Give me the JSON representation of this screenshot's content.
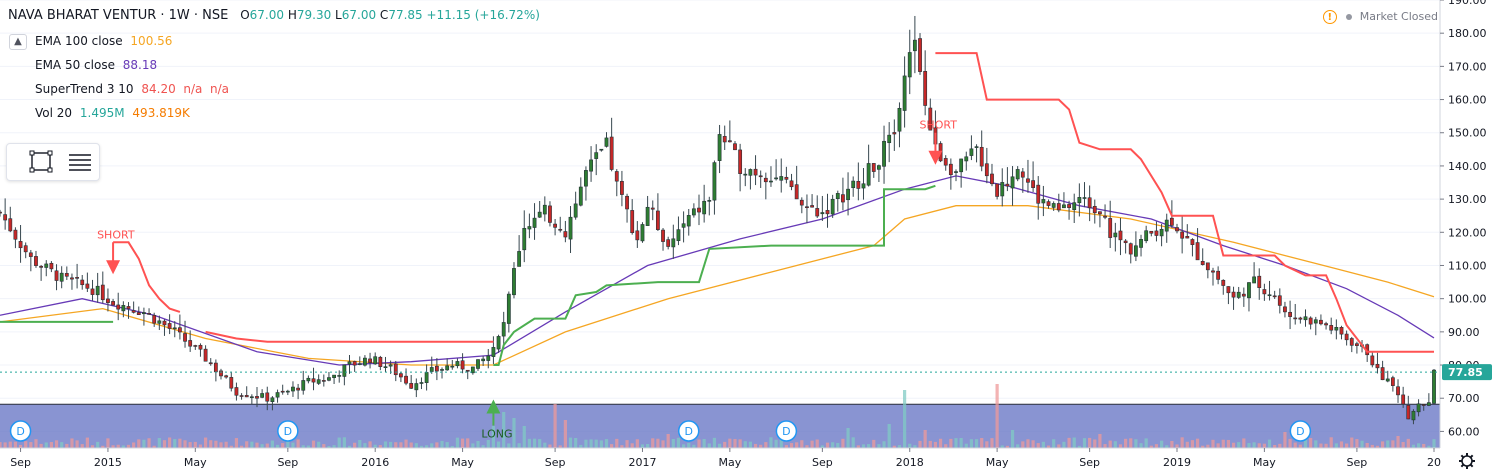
{
  "header": {
    "symbol": "NAVA BHARAT VENTUR · 1W · NSE",
    "o_label": "O",
    "o_value": "67.00",
    "h_label": "H",
    "h_value": "79.30",
    "l_label": "L",
    "l_value": "67.00",
    "c_label": "C",
    "c_value": "77.85",
    "change": "+11.15 (+16.72%)"
  },
  "market_status": "Market Closed",
  "indicators": [
    {
      "name": "EMA 100 close",
      "values": "100.56",
      "color": "#f5a623"
    },
    {
      "name": "EMA 50 close",
      "values": "88.18",
      "color": "#673ab7"
    },
    {
      "name": "SuperTrend 3 10",
      "values": "84.20  n/a  n/a",
      "color": "#ef5350"
    },
    {
      "name": "Vol 20",
      "values": "1.495M",
      "values2": "493.819K",
      "color": "#26a69a",
      "color2": "#f57c00"
    }
  ],
  "colors": {
    "up": "#26a69a",
    "down": "#ef5350",
    "upCandle": "#2e7d32",
    "downCandle": "#c62828",
    "ema100": "#f5a623",
    "ema50": "#673ab7",
    "stUp": "#4caf50",
    "stDown": "#ff5252",
    "volumePane": "#5b6bc0",
    "lastPrice": "#26a69a",
    "divider": "#d1d4dc"
  },
  "chart_data": {
    "type": "candlestick",
    "title": "NAVA BHARAT VENTUR · 1W · NSE",
    "y_range": [
      55,
      190
    ],
    "y_ticks": [
      "190.00",
      "180.00",
      "170.00",
      "160.00",
      "150.00",
      "140.00",
      "130.00",
      "120.00",
      "110.00",
      "100.00",
      "90.00",
      "80.00",
      "70.00",
      "60.00"
    ],
    "y_tick_values": [
      190,
      180,
      170,
      160,
      150,
      140,
      130,
      120,
      110,
      100,
      90,
      80,
      70,
      60
    ],
    "x_range": [
      0,
      279
    ],
    "x_ticks": [
      {
        "label": "Sep",
        "x": 4
      },
      {
        "label": "2015",
        "x": 21
      },
      {
        "label": "May",
        "x": 38
      },
      {
        "label": "Sep",
        "x": 56
      },
      {
        "label": "2016",
        "x": 73
      },
      {
        "label": "May",
        "x": 90
      },
      {
        "label": "Sep",
        "x": 108
      },
      {
        "label": "2017",
        "x": 125
      },
      {
        "label": "May",
        "x": 142
      },
      {
        "label": "Sep",
        "x": 160
      },
      {
        "label": "2018",
        "x": 177
      },
      {
        "label": "May",
        "x": 194
      },
      {
        "label": "Sep",
        "x": 212
      },
      {
        "label": "2019",
        "x": 229
      },
      {
        "label": "May",
        "x": 246
      },
      {
        "label": "Sep",
        "x": 264
      },
      {
        "label": "20",
        "x": 281
      }
    ],
    "last_price": 77.85,
    "last_price_label": "77.85",
    "price_key": [
      [
        0,
        126
      ],
      [
        6,
        112
      ],
      [
        12,
        106
      ],
      [
        18,
        103
      ],
      [
        22,
        99
      ],
      [
        28,
        96
      ],
      [
        34,
        90
      ],
      [
        40,
        82
      ],
      [
        46,
        72
      ],
      [
        52,
        70
      ],
      [
        56,
        72
      ],
      [
        60,
        75
      ],
      [
        64,
        76
      ],
      [
        68,
        80
      ],
      [
        72,
        82
      ],
      [
        76,
        79
      ],
      [
        80,
        74
      ],
      [
        84,
        78
      ],
      [
        88,
        80
      ],
      [
        92,
        79
      ],
      [
        96,
        84
      ],
      [
        98,
        92
      ],
      [
        100,
        108
      ],
      [
        102,
        122
      ],
      [
        106,
        126
      ],
      [
        110,
        120
      ],
      [
        114,
        138
      ],
      [
        118,
        146
      ],
      [
        120,
        134
      ],
      [
        124,
        118
      ],
      [
        126,
        128
      ],
      [
        130,
        116
      ],
      [
        134,
        124
      ],
      [
        138,
        130
      ],
      [
        140,
        150
      ],
      [
        144,
        140
      ],
      [
        148,
        138
      ],
      [
        152,
        136
      ],
      [
        156,
        128
      ],
      [
        160,
        126
      ],
      [
        166,
        134
      ],
      [
        170,
        140
      ],
      [
        174,
        150
      ],
      [
        176,
        170
      ],
      [
        178,
        176
      ],
      [
        180,
        158
      ],
      [
        182,
        145
      ],
      [
        186,
        138
      ],
      [
        190,
        145
      ],
      [
        194,
        132
      ],
      [
        196,
        135
      ],
      [
        198,
        140
      ],
      [
        202,
        130
      ],
      [
        206,
        126
      ],
      [
        210,
        130
      ],
      [
        214,
        127
      ],
      [
        216,
        120
      ],
      [
        220,
        115
      ],
      [
        224,
        120
      ],
      [
        228,
        124
      ],
      [
        232,
        115
      ],
      [
        236,
        108
      ],
      [
        240,
        100
      ],
      [
        244,
        105
      ],
      [
        248,
        101
      ],
      [
        250,
        95
      ],
      [
        254,
        94
      ],
      [
        258,
        92
      ],
      [
        262,
        88
      ],
      [
        266,
        84
      ],
      [
        268,
        78
      ],
      [
        272,
        72
      ],
      [
        274,
        64
      ],
      [
        276,
        68
      ],
      [
        278,
        68
      ],
      [
        279,
        77.85
      ]
    ],
    "ema100_key": [
      [
        0,
        93
      ],
      [
        20,
        97
      ],
      [
        40,
        88
      ],
      [
        60,
        82
      ],
      [
        80,
        80
      ],
      [
        96,
        80
      ],
      [
        110,
        90
      ],
      [
        130,
        100
      ],
      [
        150,
        108
      ],
      [
        170,
        116
      ],
      [
        176,
        124
      ],
      [
        186,
        128
      ],
      [
        200,
        128
      ],
      [
        220,
        124
      ],
      [
        240,
        117
      ],
      [
        260,
        109
      ],
      [
        270,
        105
      ],
      [
        279,
        100.56
      ]
    ],
    "ema50_key": [
      [
        0,
        95
      ],
      [
        16,
        100
      ],
      [
        30,
        95
      ],
      [
        50,
        84
      ],
      [
        66,
        80
      ],
      [
        80,
        81
      ],
      [
        96,
        83
      ],
      [
        110,
        96
      ],
      [
        126,
        110
      ],
      [
        144,
        118
      ],
      [
        160,
        124
      ],
      [
        176,
        133
      ],
      [
        186,
        137
      ],
      [
        196,
        134
      ],
      [
        210,
        128
      ],
      [
        224,
        124
      ],
      [
        238,
        116
      ],
      [
        250,
        110
      ],
      [
        262,
        103
      ],
      [
        272,
        95
      ],
      [
        279,
        88.18
      ]
    ],
    "supertrend": [
      {
        "trend": "up",
        "points": [
          [
            0,
            93
          ],
          [
            22,
            93
          ]
        ]
      },
      {
        "trend": "down",
        "points": [
          [
            22,
            117
          ],
          [
            25,
            117
          ],
          [
            27,
            112
          ],
          [
            29,
            104
          ],
          [
            31,
            100
          ],
          [
            33,
            97
          ],
          [
            35,
            96
          ]
        ]
      },
      {
        "trend": "down",
        "points": [
          [
            40,
            90
          ],
          [
            46,
            88
          ],
          [
            52,
            87
          ],
          [
            60,
            87
          ],
          [
            70,
            87
          ],
          [
            80,
            87
          ],
          [
            92,
            87
          ],
          [
            96,
            87
          ]
        ]
      },
      {
        "trend": "up",
        "points": [
          [
            96,
            80
          ],
          [
            97,
            80
          ],
          [
            98,
            86
          ],
          [
            100,
            90
          ],
          [
            104,
            94
          ],
          [
            110,
            94
          ],
          [
            112,
            101
          ],
          [
            116,
            102
          ],
          [
            118,
            104
          ],
          [
            128,
            105
          ],
          [
            136,
            105
          ],
          [
            138,
            115
          ],
          [
            150,
            116
          ],
          [
            160,
            116
          ],
          [
            170,
            116
          ],
          [
            172,
            116
          ],
          [
            172,
            133
          ],
          [
            180,
            133
          ],
          [
            182,
            134
          ]
        ]
      },
      {
        "trend": "down",
        "points": [
          [
            182,
            174
          ],
          [
            184,
            174
          ],
          [
            190,
            174
          ],
          [
            192,
            160
          ],
          [
            200,
            160
          ],
          [
            206,
            160
          ],
          [
            208,
            157
          ],
          [
            210,
            147
          ],
          [
            214,
            145
          ],
          [
            220,
            145
          ],
          [
            222,
            142
          ],
          [
            226,
            132
          ],
          [
            228,
            125
          ],
          [
            232,
            125
          ],
          [
            236,
            125
          ],
          [
            238,
            113
          ],
          [
            242,
            113
          ],
          [
            248,
            113
          ],
          [
            250,
            110
          ],
          [
            254,
            107
          ],
          [
            258,
            107
          ],
          [
            260,
            100
          ],
          [
            262,
            92
          ],
          [
            266,
            84
          ],
          [
            270,
            84
          ],
          [
            279,
            84
          ]
        ]
      }
    ],
    "signals": [
      {
        "label": "SHORT",
        "x": 22,
        "price": 117,
        "type": "short"
      },
      {
        "label": "SHORT",
        "x": 182,
        "price": 150,
        "type": "short"
      },
      {
        "label": "LONG",
        "x": 96,
        "price": 69,
        "type": "long"
      }
    ],
    "volume_spikes": [
      [
        96,
        0.55
      ],
      [
        98,
        0.9
      ],
      [
        100,
        0.75
      ],
      [
        102,
        0.55
      ],
      [
        108,
        1.1
      ],
      [
        110,
        0.7
      ],
      [
        130,
        0.35
      ],
      [
        165,
        0.5
      ],
      [
        173,
        0.6
      ],
      [
        176,
        1.45
      ],
      [
        180,
        0.45
      ],
      [
        194,
        1.6
      ],
      [
        197,
        0.45
      ],
      [
        214,
        0.35
      ],
      [
        250,
        0.4
      ],
      [
        272,
        0.3
      ]
    ],
    "dividend_markers": [
      {
        "x": 4,
        "label": "D"
      },
      {
        "x": 56,
        "label": "D"
      },
      {
        "x": 134,
        "label": "D"
      },
      {
        "x": 153,
        "label": "D"
      },
      {
        "x": 253,
        "label": "D"
      }
    ]
  }
}
